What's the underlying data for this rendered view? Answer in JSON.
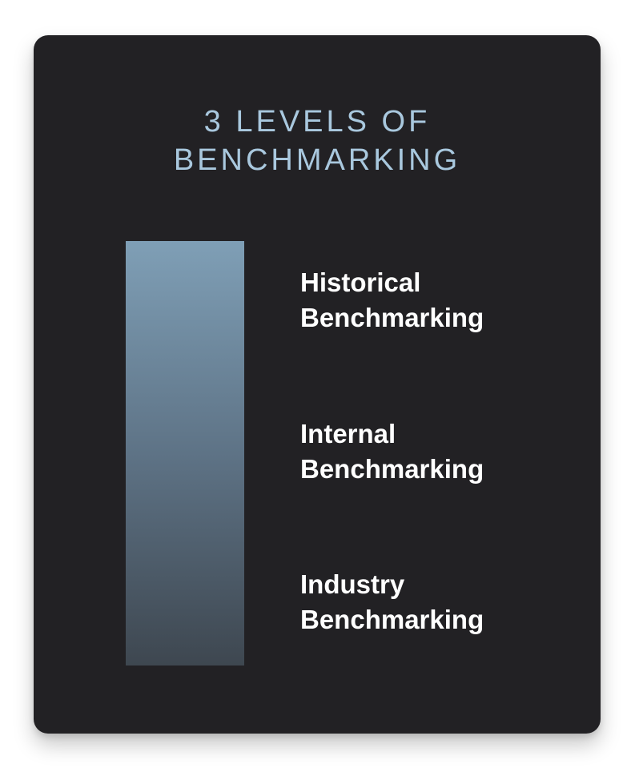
{
  "title": {
    "line1": "3 LEVELS OF",
    "line2": "BENCHMARKING"
  },
  "levels": [
    {
      "line1": "Historical",
      "line2": "Benchmarking"
    },
    {
      "line1": "Internal",
      "line2": "Benchmarking"
    },
    {
      "line1": "Industry",
      "line2": "Benchmarking"
    }
  ],
  "colors": {
    "card_background": "#222124",
    "title": "#a9c8de",
    "label": "#ffffff",
    "bar_top": "#7f9fb6",
    "bar_bottom": "#3e4750"
  }
}
